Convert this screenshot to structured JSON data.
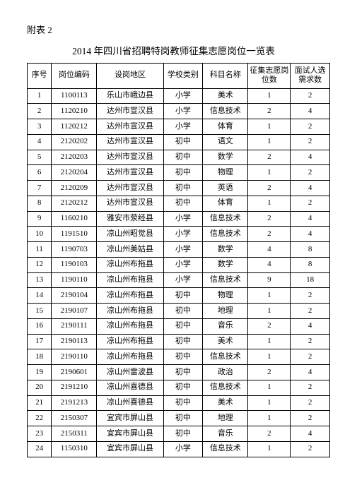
{
  "annex_label": "附表 2",
  "title": "2014  年四川省招聘特岗教师征集志愿岗位一览表",
  "headers": [
    "序号",
    "岗位编码",
    "设岗地区",
    "学校类别",
    "科目名称",
    "征集志愿岗位数",
    "面试人选需求数"
  ],
  "rows": [
    [
      "1",
      "1100113",
      "乐山市峨边县",
      "小学",
      "美术",
      "1",
      "2"
    ],
    [
      "2",
      "1120210",
      "达州市宣汉县",
      "小学",
      "信息技术",
      "2",
      "4"
    ],
    [
      "3",
      "1120212",
      "达州市宣汉县",
      "小学",
      "体育",
      "1",
      "2"
    ],
    [
      "4",
      "2120202",
      "达州市宣汉县",
      "初中",
      "语文",
      "1",
      "2"
    ],
    [
      "5",
      "2120203",
      "达州市宣汉县",
      "初中",
      "数学",
      "2",
      "4"
    ],
    [
      "6",
      "2120204",
      "达州市宣汉县",
      "初中",
      "物理",
      "1",
      "2"
    ],
    [
      "7",
      "2120209",
      "达州市宣汉县",
      "初中",
      "英语",
      "2",
      "4"
    ],
    [
      "8",
      "2120212",
      "达州市宣汉县",
      "初中",
      "体育",
      "1",
      "2"
    ],
    [
      "9",
      "1160210",
      "雅安市荥经县",
      "小学",
      "信息技术",
      "2",
      "4"
    ],
    [
      "10",
      "1191510",
      "凉山州昭觉县",
      "小学",
      "信息技术",
      "2",
      "4"
    ],
    [
      "11",
      "1190703",
      "凉山州美姑县",
      "小学",
      "数学",
      "4",
      "8"
    ],
    [
      "12",
      "1190103",
      "凉山州布拖县",
      "小学",
      "数学",
      "4",
      "8"
    ],
    [
      "13",
      "1190110",
      "凉山州布拖县",
      "小学",
      "信息技术",
      "9",
      "18"
    ],
    [
      "14",
      "2190104",
      "凉山州布拖县",
      "初中",
      "物理",
      "1",
      "2"
    ],
    [
      "15",
      "2190107",
      "凉山州布拖县",
      "初中",
      "地理",
      "1",
      "2"
    ],
    [
      "16",
      "2190111",
      "凉山州布拖县",
      "初中",
      "音乐",
      "2",
      "4"
    ],
    [
      "17",
      "2190113",
      "凉山州布拖县",
      "初中",
      "美术",
      "1",
      "2"
    ],
    [
      "18",
      "2190110",
      "凉山州布拖县",
      "初中",
      "信息技术",
      "1",
      "2"
    ],
    [
      "19",
      "2190601",
      "凉山州雷波县",
      "初中",
      "政治",
      "2",
      "4"
    ],
    [
      "20",
      "2191210",
      "凉山州喜德县",
      "初中",
      "信息技术",
      "1",
      "2"
    ],
    [
      "21",
      "2191213",
      "凉山州喜德县",
      "初中",
      "美术",
      "1",
      "2"
    ],
    [
      "22",
      "2150307",
      "宜宾市屏山县",
      "初中",
      "地理",
      "1",
      "2"
    ],
    [
      "23",
      "2150311",
      "宜宾市屏山县",
      "初中",
      "音乐",
      "2",
      "4"
    ],
    [
      "24",
      "1150310",
      "宜宾市屏山县",
      "小学",
      "信息技术",
      "1",
      "2"
    ]
  ]
}
